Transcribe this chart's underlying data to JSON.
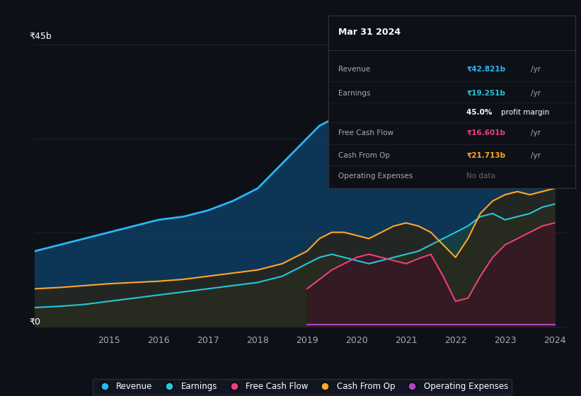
{
  "background_color": "#0d1117",
  "plot_bg_color": "#0d1117",
  "title_box": {
    "date": "Mar 31 2024",
    "revenue": "₹42.821b /yr",
    "earnings": "₹19.251b /yr",
    "profit_margin": "45.0% profit margin",
    "free_cash_flow": "₹16.601b /yr",
    "cash_from_op": "₹21.713b /yr",
    "operating_expenses": "No data"
  },
  "ylabel_top": "₹45b",
  "ylabel_bottom": "₹0",
  "colors": {
    "revenue": "#29b6f6",
    "earnings": "#26c6da",
    "free_cash_flow": "#ec407a",
    "cash_from_op": "#ffa726",
    "operating_expenses": "#ab47bc"
  },
  "series": {
    "years": [
      2013.5,
      2014,
      2014.5,
      2015,
      2015.5,
      2016,
      2016.5,
      2017,
      2017.5,
      2018,
      2018.5,
      2019,
      2019.25,
      2019.5,
      2019.75,
      2020,
      2020.25,
      2020.5,
      2020.75,
      2021,
      2021.25,
      2021.5,
      2021.75,
      2022,
      2022.25,
      2022.5,
      2022.75,
      2023,
      2023.25,
      2023.5,
      2023.75,
      2024
    ],
    "revenue": [
      12,
      13,
      14,
      15,
      16,
      17,
      17.5,
      18.5,
      20,
      22,
      26,
      30,
      32,
      33,
      31.5,
      29,
      27,
      26.5,
      27,
      27.5,
      28,
      29,
      30,
      31,
      33,
      36,
      37,
      36,
      37,
      39,
      41,
      43
    ],
    "earnings": [
      3,
      3.2,
      3.5,
      4,
      4.5,
      5,
      5.5,
      6,
      6.5,
      7,
      8,
      10,
      11,
      11.5,
      11,
      10.5,
      10,
      10.5,
      11,
      11.5,
      12,
      13,
      14,
      15,
      16,
      17.5,
      18,
      17,
      17.5,
      18,
      19,
      19.5
    ],
    "free_cash_flow": [
      null,
      null,
      null,
      null,
      null,
      null,
      null,
      null,
      null,
      null,
      null,
      6,
      7.5,
      9,
      10,
      11,
      11.5,
      11,
      10.5,
      10,
      10.8,
      11.5,
      8,
      4,
      4.5,
      8,
      11,
      13,
      14,
      15,
      16,
      16.5
    ],
    "cash_from_op": [
      6,
      6.2,
      6.5,
      6.8,
      7,
      7.2,
      7.5,
      8,
      8.5,
      9,
      10,
      12,
      14,
      15,
      15,
      14.5,
      14,
      15,
      16,
      16.5,
      16,
      15,
      13,
      11,
      14,
      18,
      20,
      21,
      21.5,
      21,
      21.5,
      22
    ],
    "operating_expenses": [
      null,
      null,
      null,
      null,
      null,
      null,
      null,
      null,
      null,
      null,
      null,
      0.3,
      0.3,
      0.3,
      0.3,
      0.3,
      0.3,
      0.3,
      0.3,
      0.3,
      0.3,
      0.3,
      0.3,
      0.3,
      0.3,
      0.3,
      0.3,
      0.3,
      0.3,
      0.3,
      0.3,
      0.3
    ]
  },
  "legend": [
    {
      "label": "Revenue",
      "color": "#29b6f6"
    },
    {
      "label": "Earnings",
      "color": "#26c6da"
    },
    {
      "label": "Free Cash Flow",
      "color": "#ec407a"
    },
    {
      "label": "Cash From Op",
      "color": "#ffa726"
    },
    {
      "label": "Operating Expenses",
      "color": "#ab47bc"
    }
  ]
}
